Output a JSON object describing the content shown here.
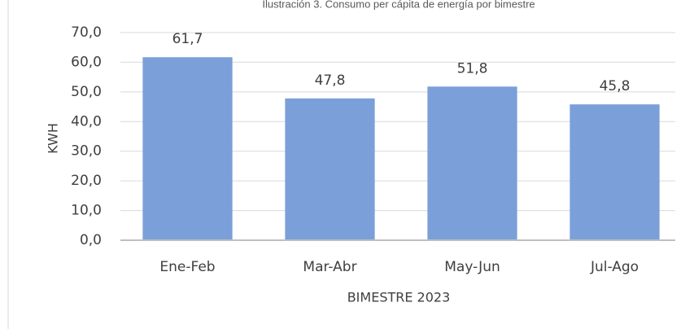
{
  "chart_data": {
    "type": "bar",
    "title": "Ilustración 3. Consumo per cápita de energía por bimestre",
    "categories": [
      "Ene-Feb",
      "Mar-Abr",
      "May-Jun",
      "Jul-Ago"
    ],
    "values": [
      61.7,
      47.8,
      51.8,
      45.8
    ],
    "value_labels": [
      "61,7",
      "47,8",
      "51,8",
      "45,8"
    ],
    "color": "#7b9fd8",
    "xlabel": "BIMESTRE 2023",
    "ylabel": "KWH",
    "ylim": [
      0,
      70
    ],
    "yticks": [
      {
        "value": 0,
        "label": "0,0"
      },
      {
        "value": 10,
        "label": "10,0"
      },
      {
        "value": 20,
        "label": "20,0"
      },
      {
        "value": 30,
        "label": "30,0"
      },
      {
        "value": 40,
        "label": "40,0"
      },
      {
        "value": 50,
        "label": "50,0"
      },
      {
        "value": 60,
        "label": "60,0"
      },
      {
        "value": 70,
        "label": "70,0"
      }
    ],
    "grid": true
  }
}
